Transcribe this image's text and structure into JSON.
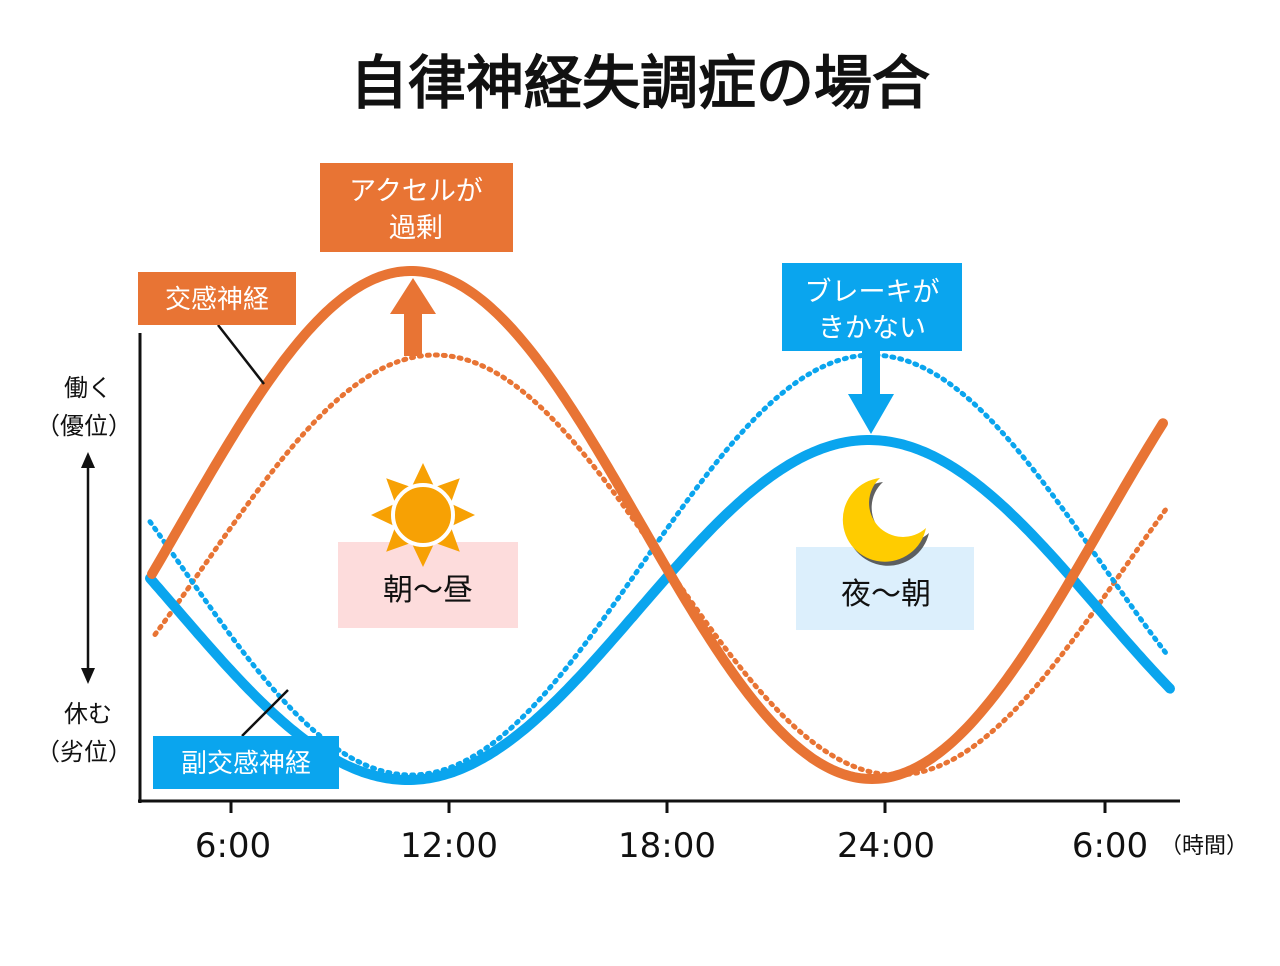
{
  "title": "自律神経失調症の場合",
  "colors": {
    "sympathetic": "#E87434",
    "parasympathetic": "#0AA5EE",
    "sun": "#F7A104",
    "moon": "#FFCC00",
    "day_box": "#FDDCDC",
    "night_box": "#DCEFFC",
    "axis": "#111111"
  },
  "callouts": {
    "accel_line1": "アクセルが",
    "accel_line2": "過剰",
    "brake_line1": "ブレーキが",
    "brake_line2": "きかない"
  },
  "labels": {
    "sympathetic": "交感神経",
    "parasympathetic": "副交感神経",
    "day": "朝〜昼",
    "night": "夜〜朝",
    "y_high_line1": "働く",
    "y_high_line2": "（優位）",
    "y_low_line1": "休む",
    "y_low_line2": "（劣位）",
    "x_unit": "（時間）"
  },
  "x_ticks": [
    "6:00",
    "12:00",
    "18:00",
    "24:00",
    "6:00"
  ],
  "icons": {
    "sun": "sun-icon",
    "moon": "crescent-moon-icon",
    "up": "up-arrow-icon",
    "down": "down-arrow-icon",
    "updown": "double-arrow-icon"
  }
}
